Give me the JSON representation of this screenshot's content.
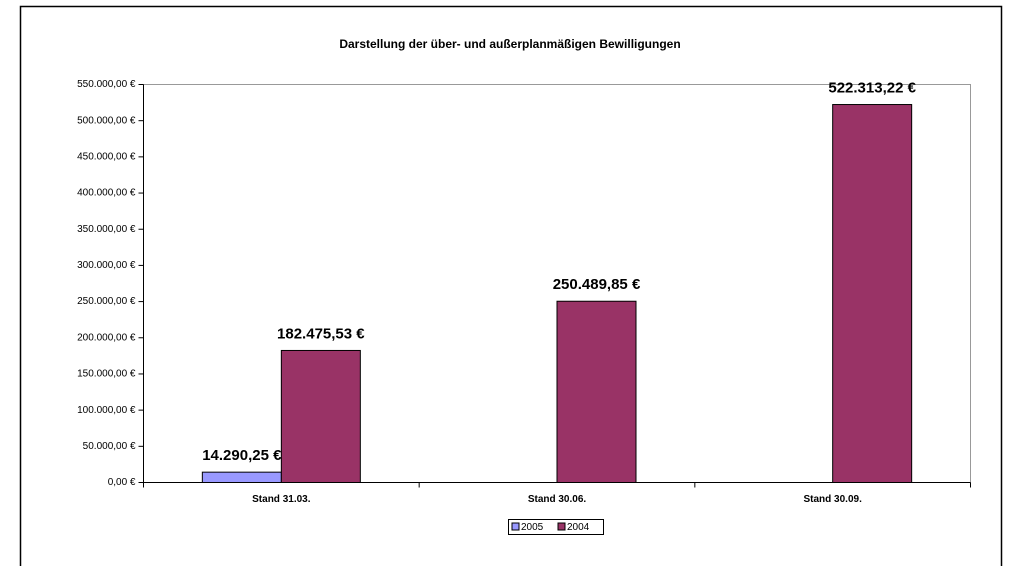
{
  "chart_data": {
    "type": "bar",
    "title": "Darstellung der über- und außerplanmäßigen Bewilligungen",
    "categories": [
      "Stand 31.03.",
      "Stand 30.06.",
      "Stand 30.09."
    ],
    "series": [
      {
        "name": "2005",
        "color": "#9999ff",
        "values": [
          14290.25,
          null,
          null
        ],
        "value_labels": [
          "14.290,25 €",
          null,
          null
        ]
      },
      {
        "name": "2004",
        "color": "#993366",
        "values": [
          182475.53,
          250489.85,
          522313.22
        ],
        "value_labels": [
          "182.475,53 €",
          "250.489,85 €",
          "522.313,22 €"
        ]
      }
    ],
    "ylim": [
      0,
      550000
    ],
    "yticks": [
      {
        "value": 0,
        "label": "0,00 €"
      },
      {
        "value": 50000,
        "label": "50.000,00 €"
      },
      {
        "value": 100000,
        "label": "100.000,00 €"
      },
      {
        "value": 150000,
        "label": "150.000,00 €"
      },
      {
        "value": 200000,
        "label": "200.000,00 €"
      },
      {
        "value": 250000,
        "label": "250.000,00 €"
      },
      {
        "value": 300000,
        "label": "300.000,00 €"
      },
      {
        "value": 350000,
        "label": "350.000,00 €"
      },
      {
        "value": 400000,
        "label": "400.000,00 €"
      },
      {
        "value": 450000,
        "label": "450.000,00 €"
      },
      {
        "value": 500000,
        "label": "500.000,00 €"
      },
      {
        "value": 550000,
        "label": "550.000,00 €"
      }
    ],
    "legend": "bottom"
  }
}
